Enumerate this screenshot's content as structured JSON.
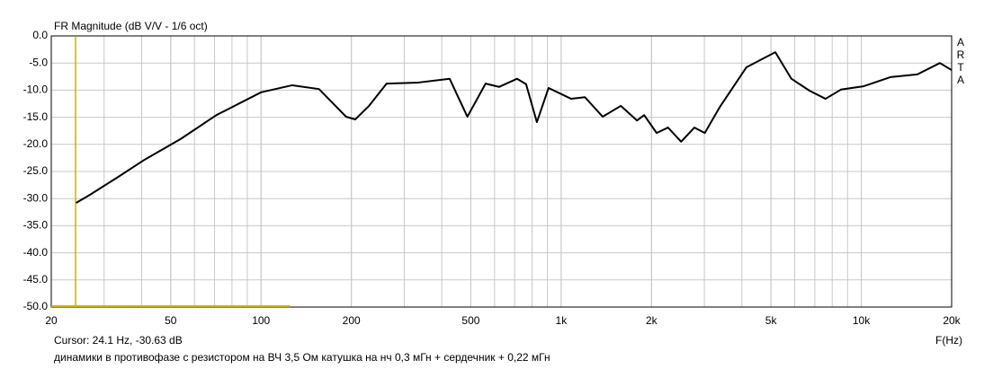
{
  "chart_data": {
    "type": "line",
    "title": "FR Magnitude (dB V/V - 1/6 oct)",
    "x_label": "F(Hz)",
    "brand": "ARTA",
    "cursor": {
      "label": "Cursor: 24.1 Hz, -30.63 dB",
      "x": 24.1,
      "y": -30.63,
      "color": "#c8b400"
    },
    "note": "динамики в противофазе с резистором на ВЧ 3,5 Ом катушка на нч 0,3 мГн + сердечник + 0,22 мГн",
    "x_scale": "log",
    "grid": true,
    "xlim": [
      20,
      20000
    ],
    "ylim": [
      -50,
      0
    ],
    "xticks": [
      20,
      50,
      100,
      200,
      500,
      {
        "value": 1000,
        "label": "1k"
      },
      {
        "value": 2000,
        "label": "2k"
      },
      {
        "value": 5000,
        "label": "5k"
      },
      {
        "value": 10000,
        "label": "10k"
      },
      {
        "value": 20000,
        "label": "20k"
      }
    ],
    "yticks": [
      {
        "value": 0,
        "label": "0.0"
      },
      {
        "value": -5,
        "label": "-5.0"
      },
      {
        "value": -10,
        "label": "-10.0"
      },
      {
        "value": -15,
        "label": "-15.0"
      },
      {
        "value": -20,
        "label": "-20.0"
      },
      {
        "value": -25,
        "label": "-25.0"
      },
      {
        "value": -30,
        "label": "-30.0"
      },
      {
        "value": -35,
        "label": "-35.0"
      },
      {
        "value": -40,
        "label": "-40.0"
      },
      {
        "value": -45,
        "label": "-45.0"
      },
      {
        "value": -50,
        "label": "-50.0"
      }
    ],
    "x": [
      24.2,
      26.9,
      33,
      41,
      54,
      71,
      100,
      127,
      156,
      192,
      206,
      229,
      262,
      334,
      425,
      487,
      560,
      621,
      713,
      764,
      830,
      908,
      1080,
      1200,
      1375,
      1580,
      1790,
      1890,
      2080,
      2270,
      2510,
      2780,
      3010,
      3370,
      4140,
      5170,
      5850,
      6720,
      7600,
      8550,
      10160,
      12500,
      15370,
      18280,
      20000
    ],
    "series": [
      {
        "color": "#000000",
        "values": [
          -30.8,
          -29.3,
          -26.2,
          -22.8,
          -19,
          -14.6,
          -10.4,
          -9.1,
          -9.8,
          -14.9,
          -15.4,
          -12.9,
          -8.8,
          -8.6,
          -7.9,
          -14.9,
          -8.8,
          -9.4,
          -7.9,
          -8.9,
          -15.9,
          -9.6,
          -11.6,
          -11.3,
          -14.9,
          -12.9,
          -15.6,
          -14.6,
          -17.9,
          -16.9,
          -19.5,
          -16.9,
          -17.9,
          -13.2,
          -5.8,
          -3,
          -7.9,
          -10.1,
          -11.6,
          -9.9,
          -9.3,
          -7.6,
          -7.1,
          -5,
          -6.3
        ]
      }
    ]
  }
}
